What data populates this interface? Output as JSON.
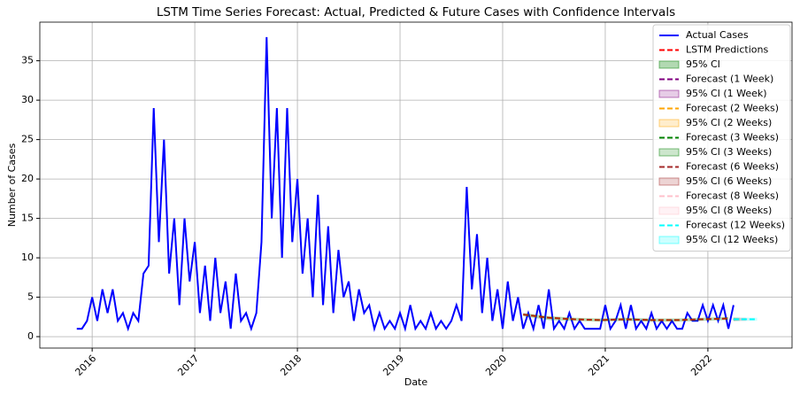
{
  "chart_data": {
    "type": "line",
    "title": "LSTM Time Series Forecast: Actual, Predicted & Future Cases with Confidence Intervals",
    "x_label": "Date",
    "y_label": "Number of Cases",
    "xlim": [
      2015.49,
      2022.82
    ],
    "ylim": [
      -1.45,
      39.9
    ],
    "xticks": [
      2016,
      2017,
      2018,
      2019,
      2020,
      2021,
      2022
    ],
    "yticks": [
      0,
      5,
      10,
      15,
      20,
      25,
      30,
      35
    ],
    "grid": true,
    "legend": "upper right",
    "series": [
      {
        "name": "Actual Cases",
        "color": "#0000ff",
        "style": "solid",
        "x": [
          2015.85,
          2015.9,
          2015.95,
          2016,
          2016.05,
          2016.1,
          2016.15,
          2016.2,
          2016.25,
          2016.3,
          2016.35,
          2016.4,
          2016.45,
          2016.5,
          2016.55,
          2016.6,
          2016.65,
          2016.7,
          2016.75,
          2016.8,
          2016.85,
          2016.9,
          2016.95,
          2017,
          2017.05,
          2017.1,
          2017.15,
          2017.2,
          2017.25,
          2017.3,
          2017.35,
          2017.4,
          2017.45,
          2017.5,
          2017.55,
          2017.6,
          2017.65,
          2017.7,
          2017.75,
          2017.8,
          2017.85,
          2017.9,
          2017.95,
          2018,
          2018.05,
          2018.1,
          2018.15,
          2018.2,
          2018.25,
          2018.3,
          2018.35,
          2018.4,
          2018.45,
          2018.5,
          2018.55,
          2018.6,
          2018.65,
          2018.7,
          2018.75,
          2018.8,
          2018.85,
          2018.9,
          2018.95,
          2019,
          2019.05,
          2019.1,
          2019.15,
          2019.2,
          2019.25,
          2019.3,
          2019.35,
          2019.4,
          2019.45,
          2019.5,
          2019.55,
          2019.6,
          2019.65,
          2019.7,
          2019.75,
          2019.8,
          2019.85,
          2019.9,
          2019.95,
          2020,
          2020.05,
          2020.1,
          2020.15,
          2020.2,
          2020.25,
          2020.3,
          2020.35,
          2020.4,
          2020.45,
          2020.5,
          2020.55,
          2020.6,
          2020.65,
          2020.7,
          2020.75,
          2020.8,
          2020.85,
          2020.9,
          2020.95,
          2021,
          2021.05,
          2021.1,
          2021.15,
          2021.2,
          2021.25,
          2021.3,
          2021.35,
          2021.4,
          2021.45,
          2021.5,
          2021.55,
          2021.6,
          2021.65,
          2021.7,
          2021.75,
          2021.8,
          2021.85,
          2021.9,
          2021.95,
          2022,
          2022.05,
          2022.1,
          2022.15,
          2022.2,
          2022.25
        ],
        "values": [
          1,
          1,
          2,
          5,
          2,
          6,
          3,
          6,
          2,
          3,
          1,
          3,
          2,
          8,
          9,
          29,
          12,
          25,
          8,
          15,
          4,
          15,
          7,
          12,
          3,
          9,
          2,
          10,
          3,
          7,
          1,
          8,
          2,
          3,
          1,
          3,
          12,
          38,
          15,
          29,
          10,
          29,
          12,
          20,
          8,
          15,
          5,
          18,
          4,
          14,
          3,
          11,
          5,
          7,
          2,
          6,
          3,
          4,
          1,
          3,
          1,
          2,
          1,
          3,
          1,
          4,
          1,
          2,
          1,
          3,
          1,
          2,
          1,
          2,
          4,
          2,
          19,
          6,
          13,
          3,
          10,
          2,
          6,
          1,
          7,
          2,
          5,
          1,
          3,
          1,
          4,
          1,
          6,
          1,
          2,
          1,
          3,
          1,
          2,
          1,
          1,
          1,
          1,
          4,
          1,
          2,
          4,
          1,
          4,
          1,
          2,
          1,
          3,
          1,
          2,
          1,
          2,
          1,
          1,
          3,
          2,
          2,
          4,
          2,
          4,
          2,
          4,
          1,
          4
        ]
      },
      {
        "name": "LSTM Predictions",
        "color": "#ff0000",
        "style": "dashed",
        "x": [
          2020.2,
          2020.45,
          2020.7,
          2020.95,
          2021.2,
          2021.45,
          2021.7,
          2021.95,
          2022.2
        ],
        "values": [
          2.8,
          2.4,
          2.2,
          2.1,
          2.2,
          2.1,
          2.1,
          2.2,
          2.3
        ]
      },
      {
        "name": "95% CI",
        "color": "#008000",
        "style": "band",
        "alpha": 0.3,
        "x": [
          2020.2,
          2020.45,
          2020.7,
          2020.95,
          2021.2,
          2021.45,
          2021.7,
          2021.95,
          2022.2
        ],
        "lower": [
          2.6,
          2.1,
          2.0,
          1.9,
          2.0,
          1.9,
          1.9,
          2.0,
          2.1
        ],
        "upper": [
          3.0,
          2.6,
          2.4,
          2.3,
          2.4,
          2.3,
          2.3,
          2.4,
          2.5
        ]
      },
      {
        "name": "Forecast (1 Week)",
        "color": "#800080",
        "style": "dashed",
        "x": [
          2022.25,
          2022.27
        ],
        "values": [
          2.2,
          2.2
        ]
      },
      {
        "name": "95% CI (1 Week)",
        "color": "#800080",
        "style": "band",
        "alpha": 0.2,
        "x": [
          2022.25,
          2022.27
        ],
        "lower": [
          2.0,
          2.0
        ],
        "upper": [
          2.4,
          2.4
        ]
      },
      {
        "name": "Forecast (2 Weeks)",
        "color": "#ffa500",
        "style": "dashed",
        "x": [
          2022.25,
          2022.29
        ],
        "values": [
          2.2,
          2.2
        ]
      },
      {
        "name": "95% CI (2 Weeks)",
        "color": "#ffa500",
        "style": "band",
        "alpha": 0.2,
        "x": [
          2022.25,
          2022.29
        ],
        "lower": [
          2.0,
          2.0
        ],
        "upper": [
          2.4,
          2.4
        ]
      },
      {
        "name": "Forecast (3 Weeks)",
        "color": "#008000",
        "style": "dashed",
        "x": [
          2022.25,
          2022.31
        ],
        "values": [
          2.2,
          2.2
        ]
      },
      {
        "name": "95% CI (3 Weeks)",
        "color": "#008000",
        "style": "band",
        "alpha": 0.2,
        "x": [
          2022.25,
          2022.31
        ],
        "lower": [
          2.0,
          2.0
        ],
        "upper": [
          2.4,
          2.4
        ]
      },
      {
        "name": "Forecast (6 Weeks)",
        "color": "#a52a2a",
        "style": "dashed",
        "x": [
          2022.25,
          2022.37
        ],
        "values": [
          2.2,
          2.2
        ]
      },
      {
        "name": "95% CI (6 Weeks)",
        "color": "#a52a2a",
        "style": "band",
        "alpha": 0.2,
        "x": [
          2022.25,
          2022.37
        ],
        "lower": [
          2.0,
          2.0
        ],
        "upper": [
          2.4,
          2.4
        ]
      },
      {
        "name": "Forecast (8 Weeks)",
        "color": "#ffc0cb",
        "style": "dashed",
        "x": [
          2022.25,
          2022.4
        ],
        "values": [
          2.2,
          2.2
        ]
      },
      {
        "name": "95% CI (8 Weeks)",
        "color": "#ffc0cb",
        "style": "band",
        "alpha": 0.2,
        "x": [
          2022.25,
          2022.4
        ],
        "lower": [
          2.0,
          2.0
        ],
        "upper": [
          2.4,
          2.4
        ]
      },
      {
        "name": "Forecast (12 Weeks)",
        "color": "#00ffff",
        "style": "dashed",
        "x": [
          2022.25,
          2022.48
        ],
        "values": [
          2.2,
          2.2
        ]
      },
      {
        "name": "95% CI (12 Weeks)",
        "color": "#00ffff",
        "style": "band",
        "alpha": 0.2,
        "x": [
          2022.25,
          2022.48
        ],
        "lower": [
          2.0,
          2.0
        ],
        "upper": [
          2.4,
          2.4
        ]
      }
    ]
  }
}
